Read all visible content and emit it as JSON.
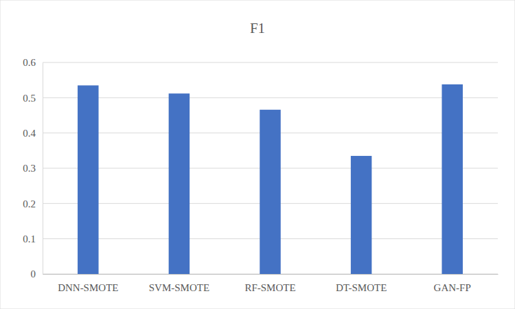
{
  "chart_data": {
    "type": "bar",
    "title": "F1",
    "categories": [
      "DNN-SMOTE",
      "SVM-SMOTE",
      "RF-SMOTE",
      "DT-SMOTE",
      "GAN-FP"
    ],
    "values": [
      0.535,
      0.512,
      0.466,
      0.335,
      0.538
    ],
    "color": "#4472c4",
    "ylim": [
      0,
      0.6
    ],
    "yticks": [
      0,
      0.1,
      0.2,
      0.3,
      0.4,
      0.5,
      0.6
    ],
    "grid": true
  }
}
